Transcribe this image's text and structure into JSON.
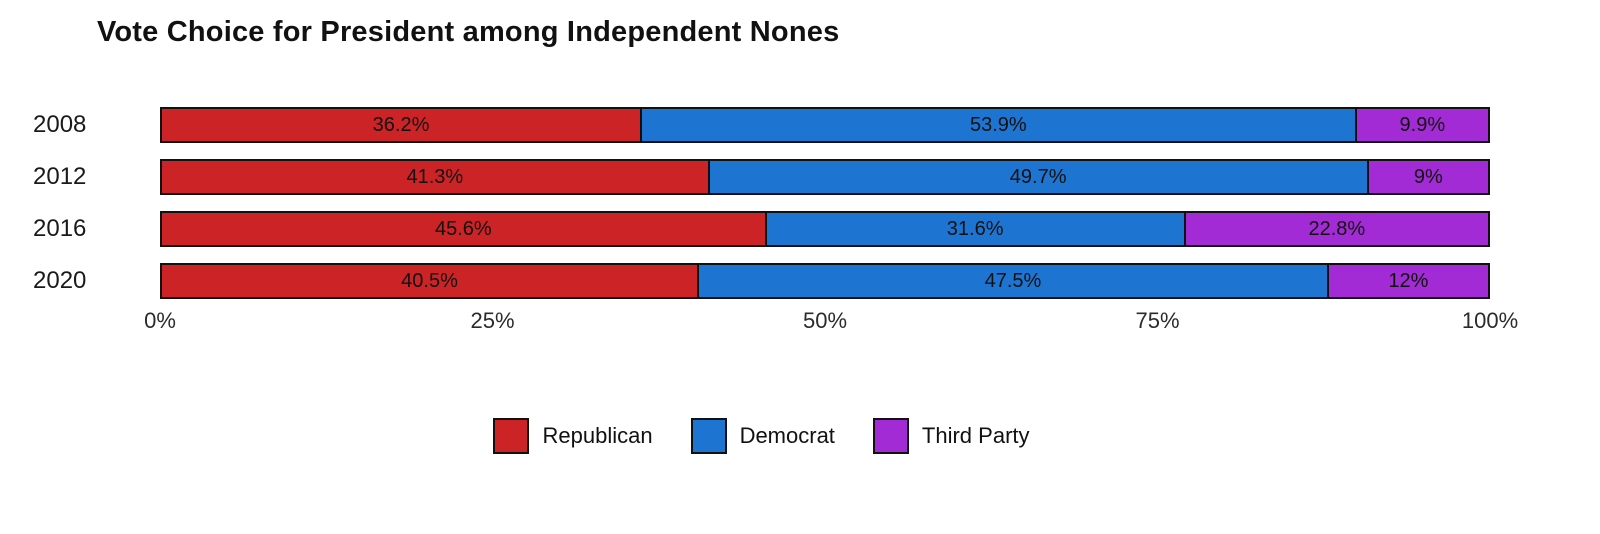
{
  "chart_data": {
    "type": "bar",
    "orientation": "horizontal",
    "stacked": true,
    "title": "Vote Choice for President among Independent Nones",
    "categories": [
      "2008",
      "2012",
      "2016",
      "2020"
    ],
    "series": [
      {
        "name": "Republican",
        "color": "#cc2327",
        "values": [
          36.2,
          41.3,
          45.6,
          40.5
        ],
        "labels": [
          "36.2%",
          "41.3%",
          "45.6%",
          "40.5%"
        ]
      },
      {
        "name": "Democrat",
        "color": "#1e75d1",
        "values": [
          53.9,
          49.7,
          31.6,
          47.5
        ],
        "labels": [
          "53.9%",
          "49.7%",
          "31.6%",
          "47.5%"
        ]
      },
      {
        "name": "Third Party",
        "color": "#a22bd5",
        "values": [
          9.9,
          9,
          22.8,
          12
        ],
        "labels": [
          "9.9%",
          "9%",
          "22.8%",
          "12%"
        ]
      }
    ],
    "x_ticks": [
      "0%",
      "25%",
      "50%",
      "75%",
      "100%"
    ],
    "xlim": [
      0,
      100
    ],
    "grid": false,
    "legend_position": "bottom",
    "bar_border_color": "#111111"
  }
}
